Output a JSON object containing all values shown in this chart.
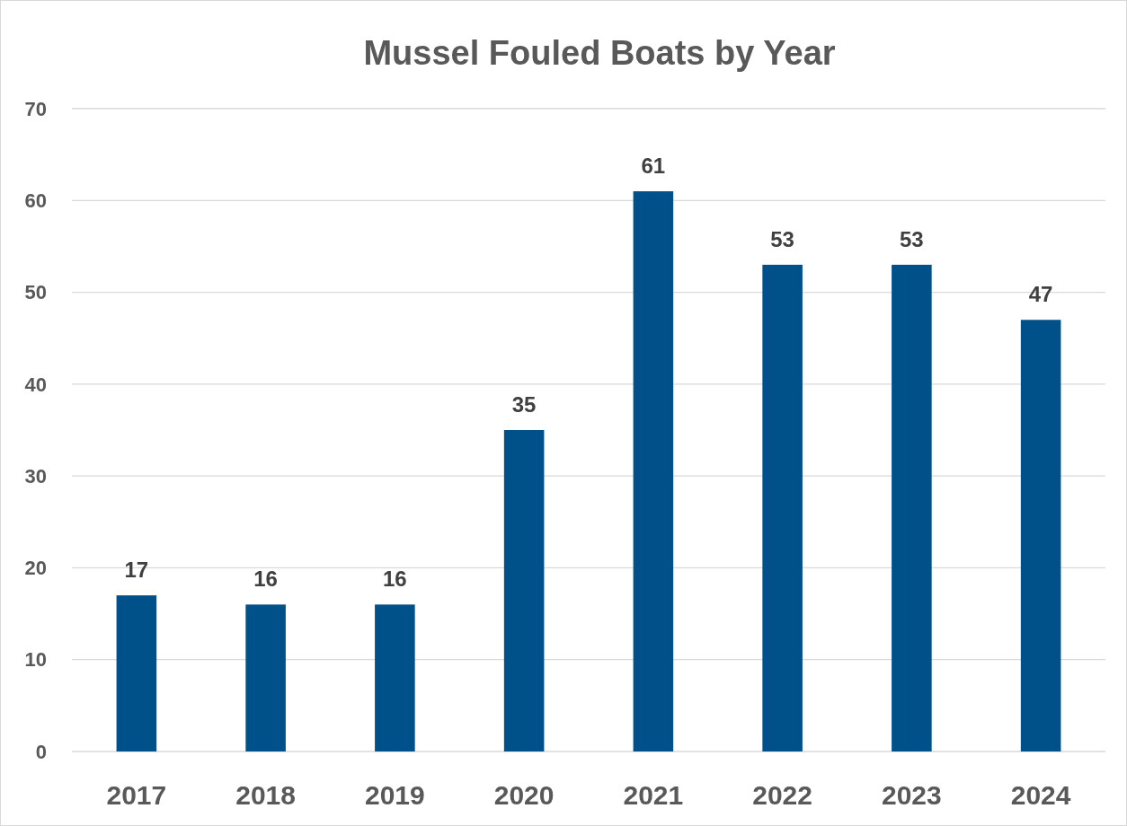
{
  "chart_data": {
    "type": "bar",
    "title": "Mussel Fouled Boats by Year",
    "categories": [
      "2017",
      "2018",
      "2019",
      "2020",
      "2021",
      "2022",
      "2023",
      "2024"
    ],
    "values": [
      17,
      16,
      16,
      35,
      61,
      53,
      53,
      47
    ],
    "color": "#00508a",
    "ylim": [
      0,
      70
    ],
    "yticks": [
      0,
      10,
      20,
      30,
      40,
      50,
      60,
      70
    ],
    "grid": "y",
    "data_labels": true
  }
}
